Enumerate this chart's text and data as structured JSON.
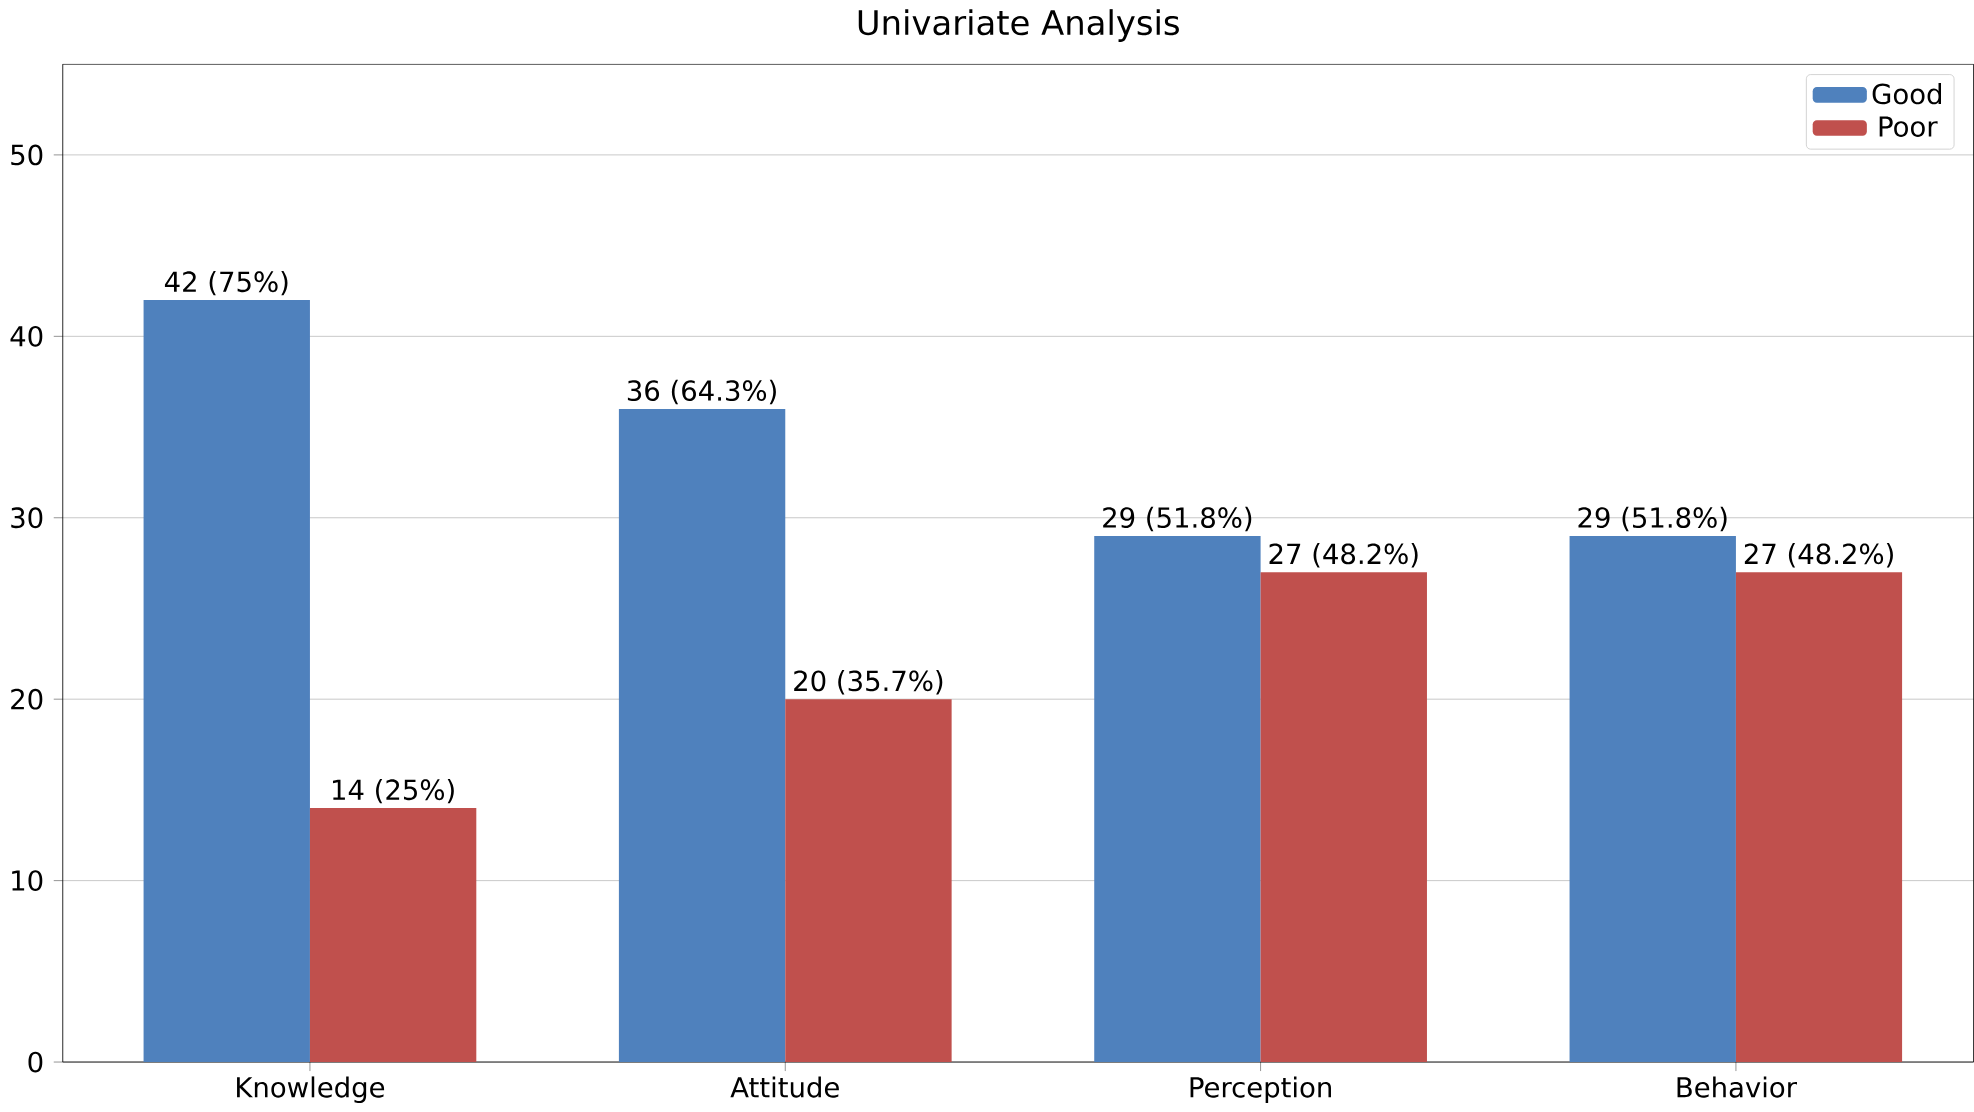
{
  "chart_data": {
    "type": "bar",
    "title": "Univariate Analysis",
    "categories": [
      "Knowledge",
      "Attitude",
      "Perception",
      "Behavior"
    ],
    "series": [
      {
        "name": "Good",
        "color": "#4f81bd",
        "values": [
          42,
          36,
          29,
          29
        ],
        "value_labels": [
          "42 (75%)",
          "36 (64.3%)",
          "29 (51.8%)",
          "29 (51.8%)"
        ]
      },
      {
        "name": "Poor",
        "color": "#c0504d",
        "values": [
          14,
          20,
          27,
          27
        ],
        "value_labels": [
          "14 (25%)",
          "20 (35.7%)",
          "27 (48.2%)",
          "27 (48.2%)"
        ]
      }
    ],
    "ylim": [
      0,
      55
    ],
    "yticks": [
      0,
      10,
      20,
      30,
      40,
      50
    ],
    "grid": "y",
    "legend": "top right"
  }
}
